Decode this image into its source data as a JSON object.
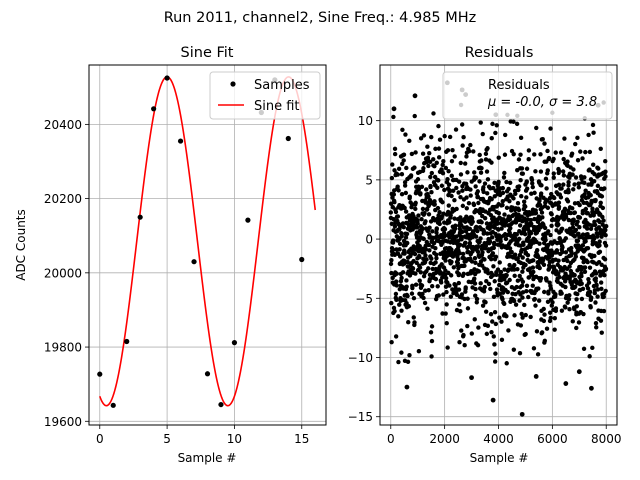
{
  "figure": {
    "suptitle": "Run 2011, channel2, Sine Freq.: 4.985 MHz"
  },
  "chart_data": [
    {
      "type": "line",
      "title": "Sine Fit",
      "xlabel": "Sample #",
      "ylabel": "ADC Counts",
      "xlim": [
        -0.8,
        16.8
      ],
      "ylim": [
        19590,
        20560
      ],
      "xticks": [
        0,
        5,
        10,
        15
      ],
      "yticks": [
        19600,
        19800,
        20000,
        20200,
        20400
      ],
      "grid": true,
      "legend": {
        "placement": "top-right",
        "entries": [
          "Samples",
          "Sine fit"
        ]
      },
      "samples": {
        "name": "Samples",
        "color": "#000000",
        "x": [
          0,
          1,
          2,
          3,
          4,
          5,
          6,
          7,
          8,
          9,
          10,
          11,
          12,
          13,
          14,
          15
        ],
        "y": [
          19727,
          19643,
          19815,
          20150,
          20442,
          20525,
          20355,
          20030,
          19728,
          19645,
          19812,
          20142,
          20432,
          20520,
          20362,
          20036
        ]
      },
      "fit": {
        "name": "Sine fit",
        "color": "#ff0000",
        "x_range": [
          0,
          16
        ],
        "mean": 20085,
        "amplitude": 443,
        "period_samples": 9.02,
        "peak_at_sample": 5.0
      }
    },
    {
      "type": "scatter",
      "title": "Residuals",
      "xlabel": "Sample #",
      "xlim": [
        -400,
        8400
      ],
      "ylim": [
        -15.7,
        14.7
      ],
      "xticks": [
        0,
        2000,
        4000,
        6000,
        8000
      ],
      "yticks": [
        -15,
        -10,
        -5,
        0,
        5,
        10
      ],
      "grid": true,
      "legend": {
        "placement": "top-right",
        "entries": [
          "Residuals"
        ],
        "stats": "μ = -0.0, σ = 3.8"
      },
      "series": [
        {
          "name": "Residuals",
          "color": "#000000",
          "n_points": 8000,
          "mean": 0.0,
          "std": 3.8,
          "outliers": [
            {
              "x": 4880,
              "y": -14.8
            },
            {
              "x": 3800,
              "y": -13.6
            },
            {
              "x": 2100,
              "y": 13.2
            },
            {
              "x": 2650,
              "y": 12.6
            },
            {
              "x": 2780,
              "y": 12.2
            },
            {
              "x": 900,
              "y": 12.1
            },
            {
              "x": 3900,
              "y": 10.5
            },
            {
              "x": 600,
              "y": -12.5
            },
            {
              "x": 7450,
              "y": -12.6
            },
            {
              "x": 6500,
              "y": -12.2
            },
            {
              "x": 5400,
              "y": -11.6
            },
            {
              "x": 3000,
              "y": -11.7
            },
            {
              "x": 7000,
              "y": -11.2
            },
            {
              "x": 120,
              "y": 11.0
            },
            {
              "x": 7700,
              "y": 11.3
            }
          ]
        }
      ]
    }
  ]
}
